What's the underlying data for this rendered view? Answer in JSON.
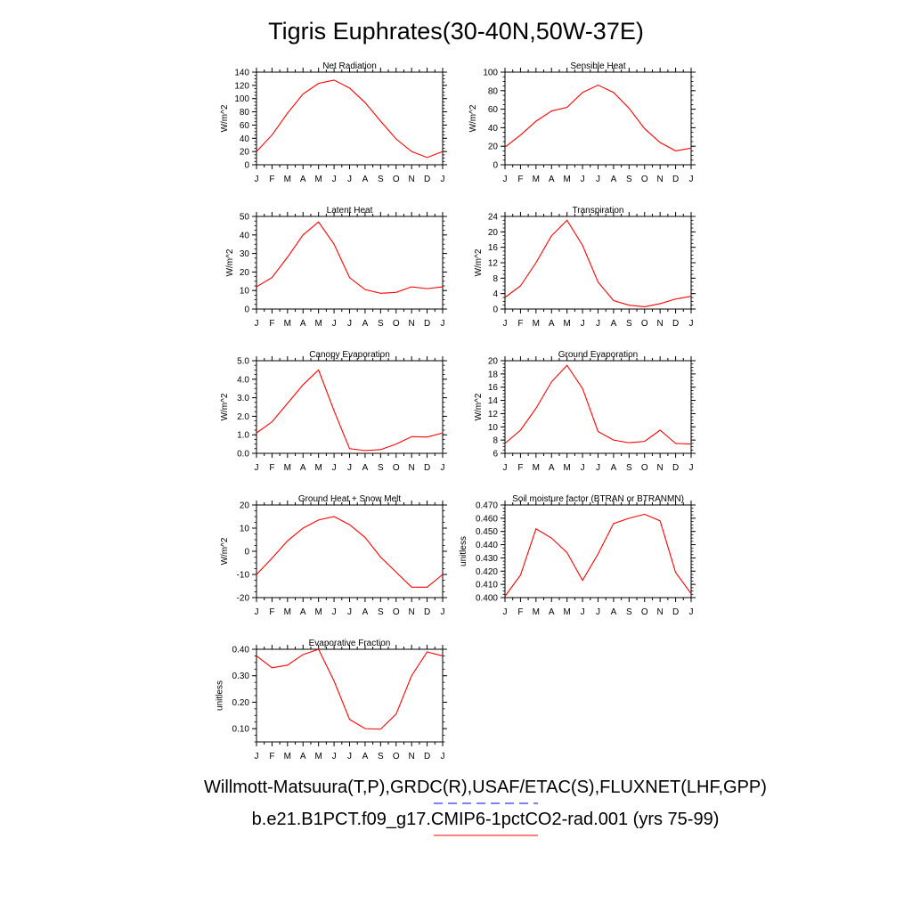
{
  "title": "Tigris Euphrates(30-40N,50W-37E)",
  "footer": {
    "line1": "Willmott-Matsuura(T,P),GRDC(R),USAF/ETAC(S),FLUXNET(LHF,GPP)",
    "line2": "b.e21.B1PCT.f09_g17.CMIP6-1pctCO2-rad.001 (yrs 75-99)"
  },
  "colors": {
    "model_line": "#ff0000",
    "obs_line": "#0000ff"
  },
  "chart_data": [
    {
      "type": "line",
      "title": "Net Radiation",
      "ylabel": "W/m^2",
      "x": [
        "J",
        "F",
        "M",
        "A",
        "M",
        "J",
        "J",
        "A",
        "S",
        "O",
        "N",
        "D",
        "J"
      ],
      "ylim": [
        0,
        140
      ],
      "yticks": [
        0,
        20,
        40,
        60,
        80,
        100,
        120,
        140
      ],
      "ytick_labels": [
        "0",
        "20",
        "40",
        "60",
        "80",
        "100",
        "120",
        "140"
      ],
      "series": [
        {
          "values": [
            20,
            45,
            78,
            107,
            123,
            128,
            116,
            94,
            66,
            39,
            20,
            11,
            20
          ]
        }
      ]
    },
    {
      "type": "line",
      "title": "Sensible Heat",
      "ylabel": "W/m^2",
      "x": [
        "J",
        "F",
        "M",
        "A",
        "M",
        "J",
        "J",
        "A",
        "S",
        "O",
        "N",
        "D",
        "J"
      ],
      "ylim": [
        0,
        100
      ],
      "yticks": [
        0,
        20,
        40,
        60,
        80,
        100
      ],
      "ytick_labels": [
        "0",
        "20",
        "40",
        "60",
        "80",
        "100"
      ],
      "series": [
        {
          "values": [
            19,
            32,
            47,
            58,
            62,
            78,
            86,
            78,
            61,
            39,
            24,
            15,
            18
          ]
        }
      ]
    },
    {
      "type": "line",
      "title": "Latent Heat",
      "ylabel": "W/m^2",
      "x": [
        "J",
        "F",
        "M",
        "A",
        "M",
        "J",
        "J",
        "A",
        "S",
        "O",
        "N",
        "D",
        "J"
      ],
      "ylim": [
        0,
        50
      ],
      "yticks": [
        0,
        10,
        20,
        30,
        40,
        50
      ],
      "ytick_labels": [
        "0",
        "10",
        "20",
        "30",
        "40",
        "50"
      ],
      "series": [
        {
          "values": [
            12,
            17,
            28,
            40,
            47,
            35,
            17,
            10.5,
            8.5,
            9,
            12,
            11,
            12
          ]
        }
      ]
    },
    {
      "type": "line",
      "title": "Transpiration",
      "ylabel": "W/m^2",
      "x": [
        "J",
        "F",
        "M",
        "A",
        "M",
        "J",
        "J",
        "A",
        "S",
        "O",
        "N",
        "D",
        "J"
      ],
      "ylim": [
        0,
        24
      ],
      "yticks": [
        0,
        4,
        8,
        12,
        16,
        20,
        24
      ],
      "ytick_labels": [
        "0",
        "4",
        "8",
        "12",
        "16",
        "20",
        "24"
      ],
      "series": [
        {
          "values": [
            3,
            6,
            12,
            19,
            23,
            16.5,
            7,
            2.2,
            1,
            0.6,
            1.4,
            2.6,
            3.3
          ]
        }
      ]
    },
    {
      "type": "line",
      "title": "Canopy Evaporation",
      "ylabel": "W/m^2",
      "x": [
        "J",
        "F",
        "M",
        "A",
        "M",
        "J",
        "J",
        "A",
        "S",
        "O",
        "N",
        "D",
        "J"
      ],
      "ylim": [
        0,
        5
      ],
      "yticks": [
        0,
        1,
        2,
        3,
        4,
        5
      ],
      "ytick_labels": [
        "0.0",
        "1.0",
        "2.0",
        "3.0",
        "4.0",
        "5.0"
      ],
      "series": [
        {
          "values": [
            1.1,
            1.7,
            2.7,
            3.7,
            4.5,
            2.3,
            0.25,
            0.15,
            0.2,
            0.5,
            0.9,
            0.88,
            1.1
          ]
        }
      ]
    },
    {
      "type": "line",
      "title": "Ground Evaporation",
      "ylabel": "W/m^2",
      "x": [
        "J",
        "F",
        "M",
        "A",
        "M",
        "J",
        "J",
        "A",
        "S",
        "O",
        "N",
        "D",
        "J"
      ],
      "ylim": [
        6,
        20
      ],
      "yticks": [
        6,
        8,
        10,
        12,
        14,
        16,
        18,
        20
      ],
      "ytick_labels": [
        "6",
        "8",
        "10",
        "12",
        "14",
        "16",
        "18",
        "20"
      ],
      "series": [
        {
          "values": [
            7.5,
            9.5,
            12.8,
            16.8,
            19.3,
            15.8,
            9.3,
            8.0,
            7.6,
            7.8,
            9.5,
            7.5,
            7.4
          ]
        }
      ]
    },
    {
      "type": "line",
      "title": "Ground Heat + Snow Melt",
      "ylabel": "W/m^2",
      "x": [
        "J",
        "F",
        "M",
        "A",
        "M",
        "J",
        "J",
        "A",
        "S",
        "O",
        "N",
        "D",
        "J"
      ],
      "ylim": [
        -20,
        20
      ],
      "yticks": [
        -20,
        -10,
        0,
        10,
        20
      ],
      "ytick_labels": [
        "-20",
        "-10",
        "0",
        "10",
        "20"
      ],
      "series": [
        {
          "values": [
            -10,
            -3,
            4.5,
            10,
            13.5,
            15,
            11.5,
            6,
            -2.5,
            -9,
            -15.5,
            -15.5,
            -10
          ]
        }
      ]
    },
    {
      "type": "line",
      "title": "Soil moisture factor (BTRAN or BTRANMN)",
      "ylabel": "unitless",
      "x": [
        "J",
        "F",
        "M",
        "A",
        "M",
        "J",
        "J",
        "A",
        "S",
        "O",
        "N",
        "D",
        "J"
      ],
      "ylim": [
        0.4,
        0.47
      ],
      "yticks": [
        0.4,
        0.41,
        0.42,
        0.43,
        0.44,
        0.45,
        0.46,
        0.47
      ],
      "ytick_labels": [
        "0.400",
        "0.410",
        "0.420",
        "0.430",
        "0.440",
        "0.450",
        "0.460",
        "0.470"
      ],
      "series": [
        {
          "values": [
            0.401,
            0.417,
            0.452,
            0.445,
            0.434,
            0.413,
            0.433,
            0.456,
            0.46,
            0.463,
            0.458,
            0.419,
            0.403
          ]
        }
      ]
    },
    {
      "type": "line",
      "title": "Evaporative Fraction",
      "ylabel": "unitless",
      "x": [
        "J",
        "F",
        "M",
        "A",
        "M",
        "J",
        "J",
        "A",
        "S",
        "O",
        "N",
        "D",
        "J"
      ],
      "ylim": [
        0.05,
        0.4
      ],
      "yticks": [
        0.1,
        0.2,
        0.3,
        0.4
      ],
      "ytick_labels": [
        "0.10",
        "0.20",
        "0.30",
        "0.40"
      ],
      "series": [
        {
          "values": [
            0.375,
            0.33,
            0.34,
            0.38,
            0.4,
            0.28,
            0.135,
            0.1,
            0.098,
            0.155,
            0.3,
            0.39,
            0.375
          ]
        }
      ]
    }
  ]
}
